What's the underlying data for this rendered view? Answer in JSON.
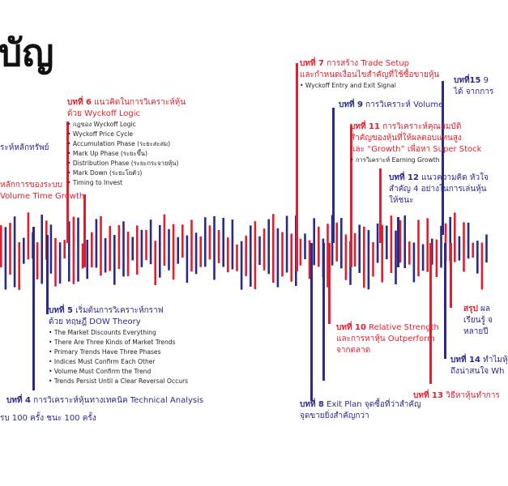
{
  "header": {
    "title": "บัญ"
  },
  "chapters": [
    {
      "color": "#2b2a86",
      "lines": [
        "ระห์หลักทรัพย์"
      ]
    },
    {
      "color": "#e0202e",
      "lines": [
        "หลักการของระบบ",
        "Volume Time Growth"
      ]
    },
    {
      "color": "#e0202e",
      "label": "บทที่ 6",
      "lines": [
        "แนวคิดในการวิเคราะห์หุ้น",
        "ด้วย Wyckoff Logic"
      ],
      "bullets": [
        "กฎของ Wyckoff Logic",
        "Wyckoff Price Cycle",
        "Accumulation Phase (ระยะสะสม)",
        "Mark Up Phase (ระยะขึ้น)",
        "Distribution Phase (ระยะกระจายหุ้น)",
        "Mark Down (ระยะโยตัว)",
        "Timing to Invest"
      ]
    },
    {
      "color": "#e0202e",
      "label": "บทที่ 7",
      "lines": [
        "การสร้าง Trade Setup",
        "และกำหนดเงื่อนไขสำคัญที่ใช้ซื้อขายหุ้น"
      ],
      "bullets": [
        "Wyckoff Entry and Exit Signal"
      ]
    },
    {
      "color": "#2b2a86",
      "label": "บทที่15",
      "lines": [
        "9",
        "ได้ จากการ"
      ]
    },
    {
      "color": "#2b2a86",
      "label": "บทที่ 9",
      "lines": [
        "การวิเคราะห์ Volume"
      ]
    },
    {
      "color": "#e0202e",
      "label": "บทที่ 11",
      "lines": [
        "การวิเคราะห์คุณสมบัติ",
        "สำคัญของหุ้นที่ให้ผลตอบแทนสูง",
        "และ “Growth” เพื่อหา Super Stock"
      ],
      "bullets": [
        "การวิเคราะห์ Earning Growth"
      ]
    },
    {
      "color": "#2b2a86",
      "label": "บทที่ 12",
      "lines": [
        "แนวความคิด หัวใจ",
        "สำคัญ 4 อย่างในการเล่นหุ้น",
        "ให้ชนะ"
      ]
    },
    {
      "color": "#2b2a86",
      "label": "บทที่ 5",
      "lines": [
        "เริ่มต้นการวิเคราะห์กราฟ",
        "ด้วย ทฤษฎี DOW Theory"
      ],
      "bullets": [
        "The Market Discounts Everything",
        "There Are Three Kinds of Market Trends",
        "Primary Trends Have Three Phases",
        "Indices Must Confirm Each Other",
        "Volume Must Confirm the Trend",
        "Trends Persist Until a Clear Reversal Occurs"
      ]
    },
    {
      "color": "#2b2a86",
      "label": "บทที่ 4",
      "lines": [
        "การวิเคราะห์หุ้นทางเทคนิค Technical Analysis"
      ]
    },
    {
      "color": "#2b2a86",
      "lines": [
        "รบ 100 ครั้ง ชนะ 100 ครั้ง"
      ]
    },
    {
      "color": "#e0202e",
      "label": "บทที่ 10",
      "lines": [
        "Relative Strength",
        "และการหาหุ้น Outperform",
        "จากตลาด"
      ]
    },
    {
      "color": "#2b2a86",
      "label": "บทที่ 8",
      "lines": [
        "Exit Plan จุดซื้อที่ว่าสำคัญ",
        "จุดขายยิ่งสำคัญกว่า"
      ]
    },
    {
      "color": "#e0202e",
      "label": "บทที่ 13",
      "lines": [
        "วิธีหาหุ้นทำการ"
      ]
    },
    {
      "color": "#2b2a86",
      "label": "บทที่ 14",
      "lines": [
        "ทำไมหุ้",
        "ถึงน่าสนใจ Wh"
      ]
    },
    {
      "color": "#2b2a86",
      "label_color": "#e0202e",
      "label": "สรุป",
      "lines": [
        "ผล",
        "เรียนรู้ จ",
        "หลายปี"
      ]
    }
  ]
}
